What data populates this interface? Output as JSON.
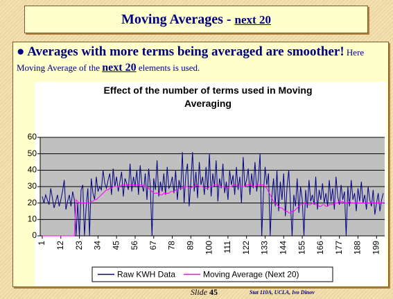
{
  "slide": {
    "title": "Moving Averages - ",
    "title_link": "next 20",
    "bullet_bold": "Averages with more terms being averaged are smoother!",
    "bullet_text": " Here Moving Average of the ",
    "bullet_link": "next 20",
    "bullet_end": " elements is used.",
    "footer_slide": "Slide",
    "footer_number": "45",
    "footer_credit": "Stat 110A, UCLA, Ivo Dinov"
  },
  "chart_data": {
    "type": "line",
    "title": "Effect of the number of terms used in Moving Averaging",
    "x": [
      1,
      2,
      3,
      4,
      5,
      6,
      7,
      8,
      9,
      10,
      11,
      12,
      13,
      14,
      15,
      16,
      17,
      18,
      19,
      20,
      21,
      22,
      23,
      24,
      25,
      26,
      27,
      28,
      29,
      30,
      31,
      32,
      33,
      34,
      35,
      36,
      37,
      38,
      39,
      40,
      41,
      42,
      43,
      44,
      45,
      46,
      47,
      48,
      49,
      50,
      51,
      52,
      53,
      54,
      55,
      56,
      57,
      58,
      59,
      60,
      61,
      62,
      63,
      64,
      65,
      66,
      67,
      68,
      69,
      70,
      71,
      72,
      73,
      74,
      75,
      76,
      77,
      78,
      79,
      80,
      81,
      82,
      83,
      84,
      85,
      86,
      87,
      88,
      89,
      90,
      91,
      92,
      93,
      94,
      95,
      96,
      97,
      98,
      99,
      100,
      101,
      102,
      103,
      104,
      105,
      106,
      107,
      108,
      109,
      110,
      111,
      112,
      113,
      114,
      115,
      116,
      117,
      118,
      119,
      120,
      121,
      122,
      123,
      124,
      125,
      126,
      127,
      128,
      129,
      130,
      131,
      132,
      133,
      134,
      135,
      136,
      137,
      138,
      139,
      140,
      141,
      142,
      143,
      144,
      145,
      146,
      147,
      148,
      149,
      150,
      151,
      152,
      153,
      154,
      155,
      156,
      157,
      158,
      159,
      160,
      161,
      162,
      163,
      164,
      165,
      166,
      167,
      168,
      169,
      170,
      171,
      172,
      173,
      174,
      175,
      176,
      177,
      178,
      179,
      180,
      181,
      182,
      183,
      184,
      185,
      186,
      187,
      188,
      189,
      190,
      191,
      192,
      193,
      194,
      195,
      196,
      197,
      198,
      199,
      200,
      201,
      202,
      203
    ],
    "series": [
      {
        "name": "Raw KWH Data",
        "color": "#000080",
        "values": [
          24,
          20,
          25,
          22,
          19,
          29,
          23,
          17,
          21,
          25,
          18,
          22,
          27,
          34,
          16,
          21,
          25,
          18,
          27,
          22,
          0,
          20,
          0,
          28,
          31,
          0,
          18,
          29,
          0,
          35,
          26,
          22,
          36,
          27,
          30,
          28,
          40,
          32,
          29,
          34,
          38,
          25,
          41,
          30,
          36,
          27,
          33,
          39,
          24,
          35,
          32,
          28,
          44,
          27,
          36,
          30,
          40,
          25,
          43,
          31,
          27,
          38,
          22,
          41,
          30,
          0,
          35,
          28,
          46,
          24,
          33,
          27,
          38,
          25,
          42,
          29,
          31,
          36,
          26,
          40,
          22,
          34,
          28,
          51,
          20,
          37,
          44,
          18,
          33,
          51,
          27,
          39,
          23,
          45,
          31,
          36,
          25,
          42,
          28,
          50,
          24,
          38,
          30,
          46,
          21,
          35,
          29,
          44,
          26,
          33,
          22,
          40,
          31,
          37,
          25,
          42,
          28,
          36,
          20,
          48,
          30,
          34,
          41,
          25,
          38,
          29,
          45,
          27,
          35,
          50,
          0,
          26,
          42,
          31,
          38,
          0,
          24,
          35,
          18,
          40,
          15,
          33,
          22,
          38,
          12,
          30,
          40,
          20,
          0,
          25,
          18,
          35,
          14,
          30,
          22,
          0,
          28,
          17,
          34,
          21,
          25,
          19,
          36,
          16,
          28,
          22,
          32,
          20,
          26,
          18,
          34,
          21,
          29,
          16,
          36,
          24,
          19,
          31,
          22,
          27,
          0,
          30,
          18,
          34,
          22,
          26,
          15,
          29,
          21,
          33,
          20,
          25,
          16,
          30,
          22,
          18,
          28,
          13,
          20,
          26,
          15,
          22,
          26
        ]
      },
      {
        "name": "Moving Average (Next 20)",
        "color": "#ff00ff",
        "values": [
          0,
          0,
          0,
          0,
          0,
          0,
          0,
          0,
          0,
          0,
          0,
          0,
          0,
          0,
          0,
          0,
          0,
          0,
          0,
          0,
          22,
          21,
          20,
          20,
          20,
          20,
          20,
          20,
          20,
          21,
          21,
          22,
          22,
          23,
          24,
          25,
          26,
          27,
          28,
          28,
          29,
          29,
          30,
          30,
          30,
          30,
          30,
          31,
          31,
          31,
          31,
          31,
          31,
          31,
          31,
          31,
          31,
          31,
          31,
          31,
          30,
          30,
          30,
          29,
          28,
          27,
          26,
          26,
          26,
          26,
          25,
          25,
          26,
          26,
          26,
          26,
          27,
          27,
          27,
          28,
          28,
          29,
          29,
          29,
          30,
          30,
          30,
          29,
          29,
          30,
          30,
          31,
          31,
          30,
          30,
          30,
          29,
          29,
          29,
          30,
          30,
          30,
          31,
          31,
          31,
          30,
          30,
          30,
          30,
          29,
          29,
          30,
          30,
          31,
          31,
          31,
          30,
          30,
          30,
          30,
          30,
          31,
          31,
          31,
          31,
          30,
          30,
          31,
          31,
          31,
          31,
          31,
          30,
          29,
          27,
          25,
          23,
          21,
          20,
          19,
          18,
          17,
          17,
          16,
          15,
          15,
          14,
          14,
          15,
          15,
          16,
          17,
          18,
          19,
          19,
          20,
          20,
          19,
          19,
          19,
          20,
          20,
          19,
          19,
          18,
          18,
          19,
          19,
          18,
          18,
          19,
          19,
          19,
          20,
          20,
          20,
          21,
          21,
          21,
          20,
          20,
          20,
          21,
          20,
          20,
          20,
          20,
          20,
          20,
          20,
          20,
          20,
          20,
          20,
          20,
          20,
          20,
          20,
          20,
          20,
          20,
          20,
          20
        ]
      }
    ],
    "xlim": [
      1,
      203
    ],
    "xticks": [
      1,
      12,
      23,
      34,
      45,
      56,
      67,
      78,
      89,
      100,
      111,
      122,
      133,
      144,
      155,
      166,
      177,
      188,
      199
    ],
    "ylim": [
      0,
      60
    ],
    "yticks": [
      0,
      10,
      20,
      30,
      40,
      50,
      60
    ],
    "grid": true,
    "legend": "bottom"
  }
}
